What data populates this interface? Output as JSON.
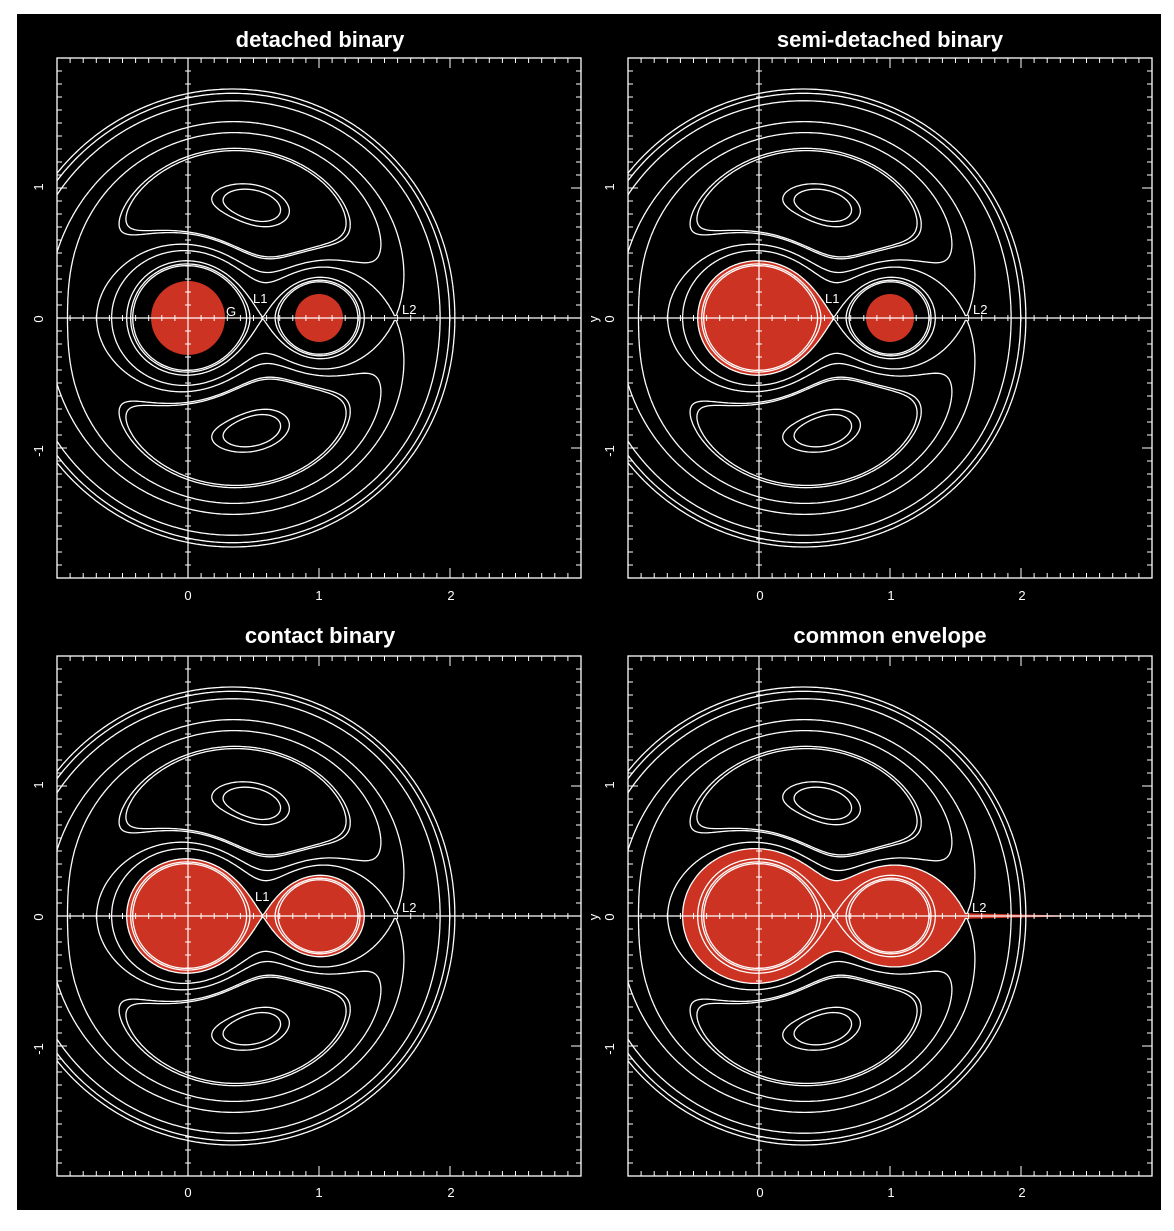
{
  "colors": {
    "background": "#000000",
    "frame": "#ffffff",
    "contour": "#ffffff",
    "star_fill": "#cc3322"
  },
  "panels": [
    {
      "title": "detached binary",
      "x_ticks": [
        "0",
        "1",
        "2"
      ],
      "y_ticks": [
        "1",
        "0",
        "-1"
      ],
      "point_labels": {
        "g": "G",
        "l1": "L1",
        "l2": "L2",
        "y": ""
      },
      "fill": "detached"
    },
    {
      "title": "semi-detached binary",
      "x_ticks": [
        "0",
        "1",
        "2"
      ],
      "y_ticks": [
        "1",
        "0",
        "-1"
      ],
      "point_labels": {
        "g": "",
        "l1": "L1",
        "l2": "L2",
        "y": "y"
      },
      "fill": "semi-detached"
    },
    {
      "title": "contact binary",
      "x_ticks": [
        "0",
        "1",
        "2"
      ],
      "y_ticks": [
        "1",
        "0",
        "-1"
      ],
      "point_labels": {
        "g": "",
        "l1": "L1",
        "l2": "L2",
        "y": ""
      },
      "fill": "contact"
    },
    {
      "title": "common envelope",
      "x_ticks": [
        "0",
        "1",
        "2"
      ],
      "y_ticks": [
        "1",
        "0",
        "-1"
      ],
      "point_labels": {
        "g": "",
        "l1": "",
        "l2": "L2",
        "y": "y"
      },
      "fill": "common"
    }
  ],
  "physics": {
    "mass_ratio": 0.5,
    "x_range": [
      -1.0,
      3.0
    ],
    "y_range": [
      -2.0,
      2.0
    ]
  }
}
